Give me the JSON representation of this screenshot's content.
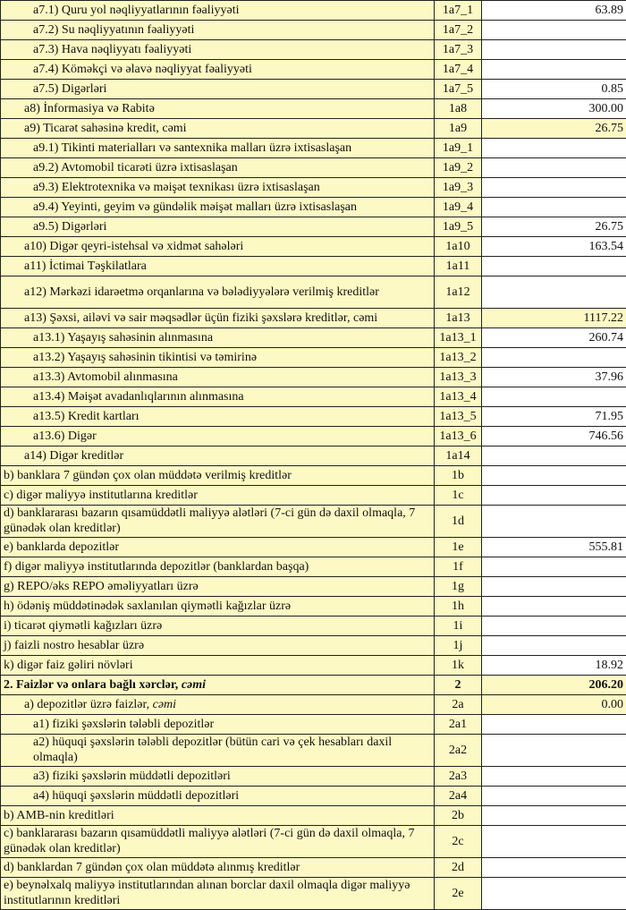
{
  "rows": [
    {
      "label": "a7.1) Quru yol nəqliyyatlarının fəaliyyəti",
      "code": "1a7_1",
      "value": "63.89",
      "level": 2
    },
    {
      "label": "a7.2) Su nəqliyyatının fəaliyyəti",
      "code": "1a7_2",
      "value": "",
      "level": 2
    },
    {
      "label": "a7.3) Hava nəqliyyatı fəaliyyəti",
      "code": "1a7_3",
      "value": "",
      "level": 2
    },
    {
      "label": "a7.4) Köməkçi və əlavə nəqliyyat fəaliyyəti",
      "code": "1a7_4",
      "value": "",
      "level": 2
    },
    {
      "label": "a7.5) Digərləri",
      "code": "1a7_5",
      "value": "0.85",
      "level": 2
    },
    {
      "label": "a8)  İnformasiya və Rabitə",
      "code": "1a8",
      "value": "300.00",
      "level": 1
    },
    {
      "label": "a9) Ticarət sahəsinə kredit, cəmi",
      "code": "1a9",
      "value": "26.75",
      "level": 1,
      "highlight": true
    },
    {
      "label": "a9.1) Tikinti materialları və santexnika malları üzrə ixtisaslaşan",
      "code": "1a9_1",
      "value": "",
      "level": 2
    },
    {
      "label": "a9.2) Avtomobil ticarəti üzrə ixtisaslaşan",
      "code": "1a9_2",
      "value": "",
      "level": 2
    },
    {
      "label": "a9.3) Elektrotexnika və məişət texnikası üzrə ixtisaslaşan",
      "code": "1a9_3",
      "value": "",
      "level": 2
    },
    {
      "label": "a9.4) Yeyinti, geyim və gündəlik məişət malları üzrə ixtisaslaşan",
      "code": "1a9_4",
      "value": "",
      "level": 2
    },
    {
      "label": "a9.5) Digərləri",
      "code": "1a9_5",
      "value": "26.75",
      "level": 2
    },
    {
      "label": "a10) Digər qeyri-istehsal və xidmət sahələri",
      "code": "1a10",
      "value": "163.54",
      "level": 1
    },
    {
      "label": "a11) İctimai Təşkilatlara",
      "code": "1a11",
      "value": "",
      "level": 1
    },
    {
      "label": "a12) Mərkəzi  idarəetmə orqanlarına və bələdiyyələrə verilmiş kreditlər",
      "code": "1a12",
      "value": "",
      "level": 1,
      "tall": true
    },
    {
      "label": "a13) Şəxsi, ailəvi və sair məqsədlər üçün fiziki şəxslərə kreditlər, cəmi",
      "code": "1a13",
      "value": "1117.22",
      "level": 1,
      "highlight": true
    },
    {
      "label": "a13.1) Yaşayış sahəsinin alınmasına",
      "code": "1a13_1",
      "value": "260.74",
      "level": 2
    },
    {
      "label": "a13.2) Yaşayış sahəsinin tikintisi və təmirinə",
      "code": "1a13_2",
      "value": "",
      "level": 2
    },
    {
      "label": "a13.3) Avtomobil alınmasına",
      "code": "1a13_3",
      "value": "37.96",
      "level": 2
    },
    {
      "label": "a13.4) Məişət avadanlıqlarının alınmasına",
      "code": "1a13_4",
      "value": "",
      "level": 2
    },
    {
      "label": "a13.5) Kredit kartları",
      "code": "1a13_5",
      "value": "71.95",
      "level": 2
    },
    {
      "label": "a13.6) Digər",
      "code": "1a13_6",
      "value": "746.56",
      "level": 2
    },
    {
      "label": "a14) Digər kreditlər",
      "code": "1a14",
      "value": "",
      "level": 1
    },
    {
      "label": "b) banklara 7 gündən çox olan müddətə verilmiş kreditlər",
      "code": "1b",
      "value": "",
      "level": 0
    },
    {
      "label": "c) digər maliyyə institutlarına kreditlər",
      "code": "1c",
      "value": "",
      "level": 0
    },
    {
      "label": "d) banklararası bazarın qısamüddətli maliyyə alətləri (7-ci gün də daxil olmaqla, 7 günədək olan kreditlər)",
      "code": "1d",
      "value": "",
      "level": 0,
      "tall": true
    },
    {
      "label": "e) banklarda depozitlər",
      "code": "1e",
      "value": "555.81",
      "level": 0
    },
    {
      "label": "f) digər maliyyə institutlarında depozitlər (banklardan başqa)",
      "code": "1f",
      "value": "",
      "level": 0
    },
    {
      "label": "g) REPO/əks REPO əməliyyatları üzrə",
      "code": "1g",
      "value": "",
      "level": 0
    },
    {
      "label": "h) ödəniş müddətinədək saxlanılan qiymətli kağızlar üzrə",
      "code": "1h",
      "value": "",
      "level": 0
    },
    {
      "label": "i) ticarət qiymətli kağızları üzrə",
      "code": "1i",
      "value": "",
      "level": 0
    },
    {
      "label": "j) faizli nostro hesablar üzrə",
      "code": "1j",
      "value": "",
      "level": 0
    },
    {
      "label": "k) digər faiz gəliri növləri",
      "code": "1k",
      "value": "18.92",
      "level": 0
    },
    {
      "label": "2. Faizlər və onlara bağlı xərclər, ",
      "label_italic": "cəmi",
      "code": "2",
      "value": "206.20",
      "level": 0,
      "highlight": true,
      "bold": true
    },
    {
      "label": "a) depozitlər üzrə faizlər, ",
      "label_italic": "cəmi",
      "code": "2a",
      "value": "0.00",
      "level": 1,
      "highlight": true
    },
    {
      "label": "a1) fiziki şəxslərin tələbli depozitlər",
      "code": "2a1",
      "value": "",
      "level": 2
    },
    {
      "label": "a2) hüquqi şəxslərin tələbli depozitlər (bütün cari və çek hesabları daxil olmaqla)",
      "code": "2a2",
      "value": "",
      "level": 2,
      "tall": true
    },
    {
      "label": "a3) fiziki şəxslərin müddətli depozitləri",
      "code": "2a3",
      "value": "",
      "level": 2
    },
    {
      "label": "a4) hüquqi şəxslərin müddətli depozitləri",
      "code": "2a4",
      "value": "",
      "level": 2
    },
    {
      "label": "b) AMB-nin kreditləri",
      "code": "2b",
      "value": "",
      "level": 0
    },
    {
      "label": "c) banklararası bazarın qısamüddətli maliyyə alətləri (7-ci gün də daxil olmaqla, 7 günədək olan kreditlər)",
      "code": "2c",
      "value": "",
      "level": 0,
      "tall": true
    },
    {
      "label": "d) banklardan 7 gündən çox olan müddətə alınmış kreditlər",
      "code": "2d",
      "value": "",
      "level": 0
    },
    {
      "label": "e) beynəlxalq maliyyə institutlarından alınan borclar daxil olmaqla digər maliyyə institutlarının kreditləri",
      "code": "2e",
      "value": "",
      "level": 0,
      "tall": true
    }
  ],
  "colors": {
    "cell_yellow": "#fdf9c4",
    "border": "#222222"
  }
}
